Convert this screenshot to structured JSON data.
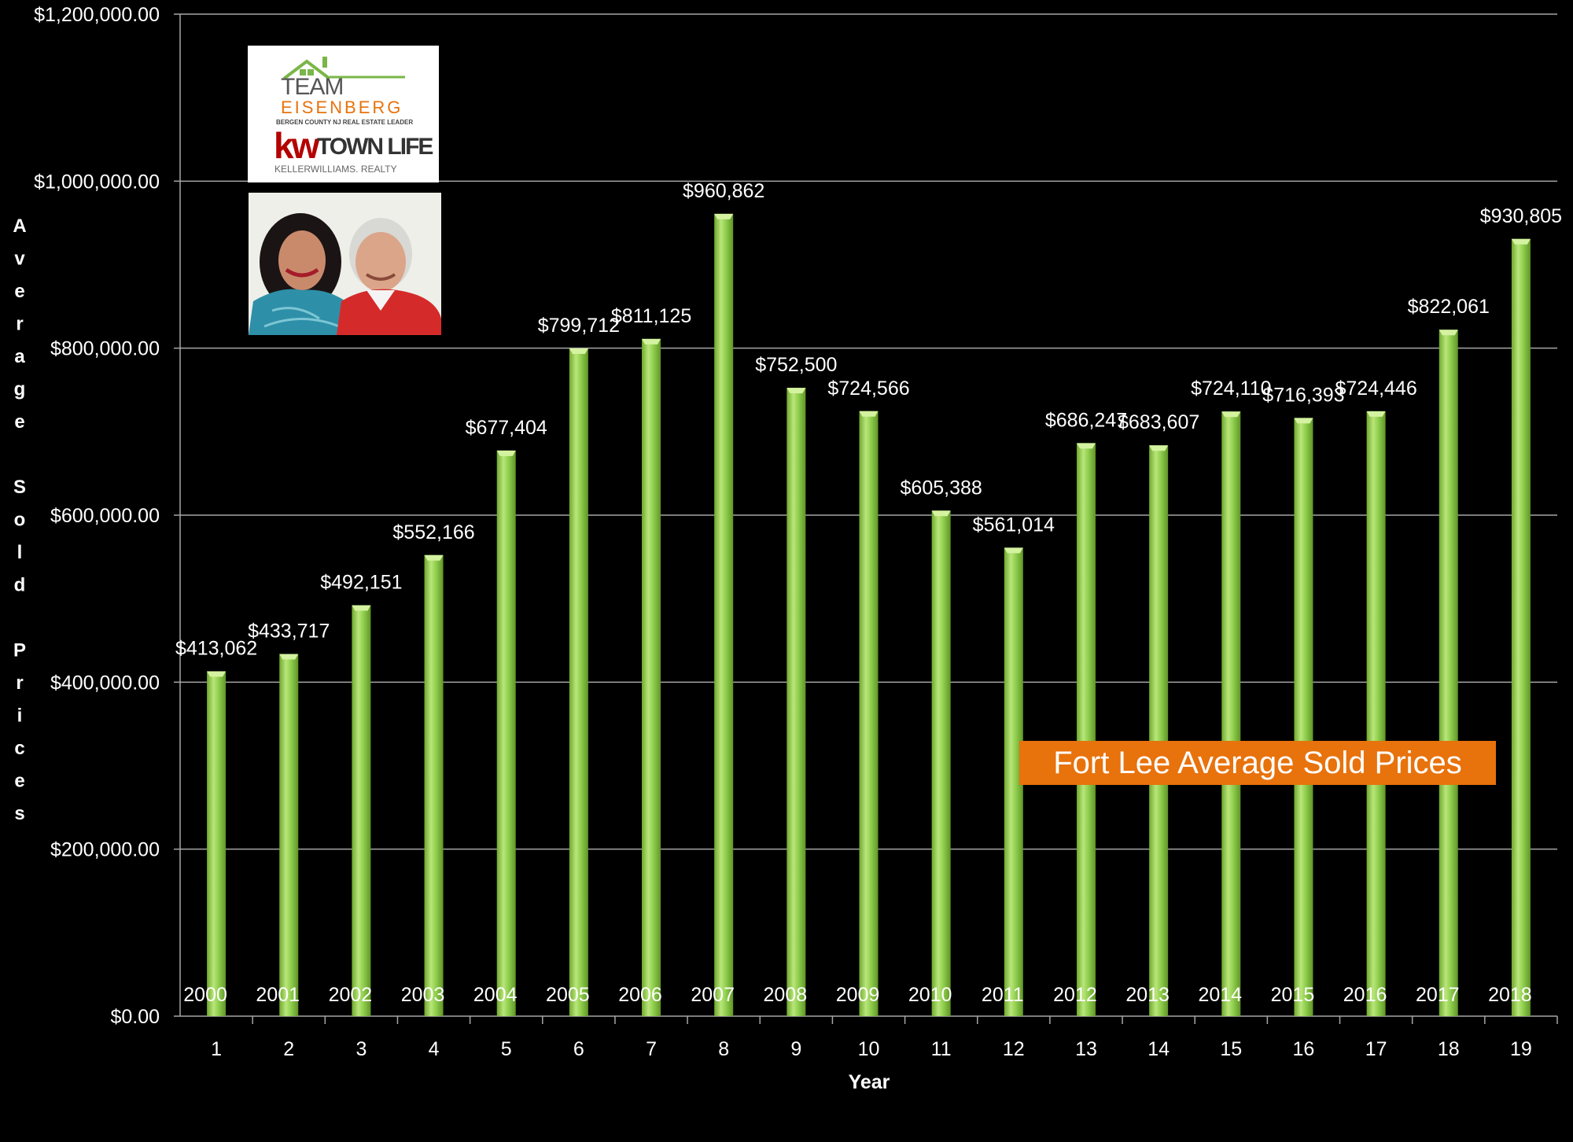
{
  "chart_data": {
    "type": "bar",
    "title": "Fort Lee Average Sold Prices",
    "xlabel": "Year",
    "ylabel": "Average Sold Prices",
    "categories": [
      "1",
      "2",
      "3",
      "4",
      "5",
      "6",
      "7",
      "8",
      "9",
      "10",
      "11",
      "12",
      "13",
      "14",
      "15",
      "16",
      "17",
      "18",
      "19"
    ],
    "years": [
      "2000",
      "2001",
      "2002",
      "2003",
      "2004",
      "2005",
      "2006",
      "2007",
      "2008",
      "2009",
      "2010",
      "2011",
      "2012",
      "2013",
      "2014",
      "2015",
      "2016",
      "2017",
      "2018"
    ],
    "values": [
      413062,
      433717,
      492151,
      552166,
      677404,
      799712,
      811125,
      960862,
      752500,
      724566,
      605388,
      561014,
      686247,
      683607,
      724110,
      716393,
      724446,
      822061,
      930805
    ],
    "data_labels": [
      "$413,062",
      "$433,717",
      "$492,151",
      "$552,166",
      "$677,404",
      "$799,712",
      "$811,125",
      "$960,862",
      "$752,500",
      "$724,566",
      "$605,388",
      "$561,014",
      "$686,247",
      "$683,607",
      "$724,110",
      "$716,393",
      "$724,446",
      "$822,061",
      "$930,805"
    ],
    "yticks": [
      0,
      200000,
      400000,
      600000,
      800000,
      1000000,
      1200000
    ],
    "ytick_labels": [
      "$0.00",
      "$200,000.00",
      "$400,000.00",
      "$600,000.00",
      "$800,000.00",
      "$1,000,000.00",
      "$1,200,000.00"
    ],
    "ylim": [
      0,
      1200000
    ],
    "grid": true,
    "colors": {
      "bar": "#92d050",
      "bar_highlight": "#d4f2a0",
      "background": "#000000",
      "title_bg": "#e8720c",
      "grid": "#a6a6a6"
    }
  },
  "branding": {
    "team": "TEAM",
    "name": "EISENBERG",
    "tagline": "BERGEN COUNTY NJ REAL ESTATE LEADER",
    "kw": "kw",
    "office": "TOWN LIFE",
    "brokerage": "KELLERWILLIAMS. REALTY"
  }
}
